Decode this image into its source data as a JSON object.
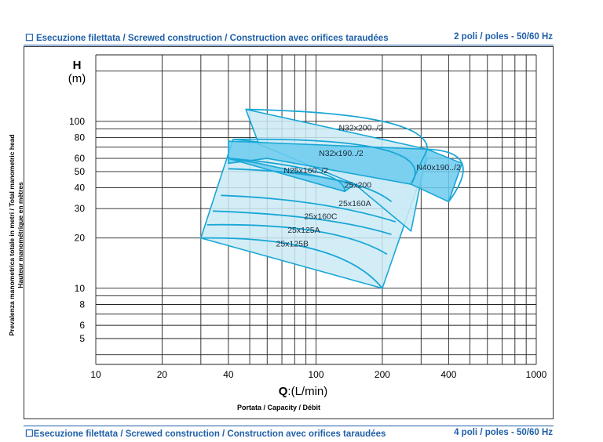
{
  "header_top": {
    "left": "Esecuzione filettata / Screwed construction / Construction avec orifices taraudées",
    "right": "2 poli / poles - 50/60 Hz",
    "checkbox_glyph": "☐"
  },
  "header_bottom": {
    "left": "Esecuzione filettata / Screwed construction / Construction avec orifices taraudées",
    "right": "4 poli / poles - 50/60 Hz",
    "checkbox_glyph": "☐"
  },
  "colors": {
    "accent": "#1f5fa8",
    "curve": "#19a7d6",
    "fill_light": "#cbeaf6",
    "fill_dark": "#6ccbee"
  },
  "chart_data": {
    "type": "line",
    "x_scale": "log",
    "y_scale": "log",
    "xlim": [
      10,
      1000
    ],
    "ylim": [
      3.5,
      250
    ],
    "x_ticks": [
      10,
      20,
      40,
      100,
      200,
      400,
      1000
    ],
    "x_tick_labels": [
      "10",
      "20",
      "40",
      "100",
      "200",
      "400",
      "1000"
    ],
    "y_ticks": [
      5,
      6,
      8,
      10,
      20,
      30,
      40,
      50,
      60,
      80,
      100
    ],
    "y_tick_labels": [
      "5",
      "6",
      "8",
      "10",
      "20",
      "30",
      "40",
      "50",
      "60",
      "80",
      "100"
    ],
    "y_unit_label": {
      "symbol": "H",
      "unit": "(m)"
    },
    "x_axis_label": {
      "symbol": "Q",
      "unit": ":(L/min)"
    },
    "x_axis_caption": "Portata / Capacity / Débit",
    "y_axis_caption": [
      "Prevalenza manometrica totale in metri / Total manometric head",
      "Hauteur manométrique en mètres"
    ],
    "grid": true,
    "regions": [
      {
        "shade": "light",
        "points": [
          [
            30,
            20
          ],
          [
            42,
            78
          ],
          [
            320,
            60
          ],
          [
            200,
            10
          ]
        ]
      },
      {
        "shade": "light",
        "points": [
          [
            48,
            118
          ],
          [
            320,
            68
          ],
          [
            270,
            22
          ],
          [
            150,
            42
          ],
          [
            55,
            73
          ]
        ]
      },
      {
        "shade": "dark",
        "points": [
          [
            40,
            76
          ],
          [
            320,
            68
          ],
          [
            270,
            42
          ],
          [
            60,
            60
          ],
          [
            40,
            56
          ]
        ]
      },
      {
        "shade": "dark",
        "points": [
          [
            40,
            60
          ],
          [
            135,
            38
          ],
          [
            150,
            42
          ],
          [
            55,
            56
          ]
        ]
      },
      {
        "shade": "dark",
        "points": [
          [
            320,
            68
          ],
          [
            460,
            56
          ],
          [
            400,
            33
          ],
          [
            270,
            42
          ]
        ]
      }
    ],
    "series": [
      {
        "label": "N32x200../2",
        "points": [
          [
            48,
            118
          ],
          [
            200,
            100
          ],
          [
            320,
            68
          ]
        ]
      },
      {
        "label": "N32x190../2",
        "points": [
          [
            42,
            78
          ],
          [
            200,
            68
          ],
          [
            270,
            42
          ]
        ]
      },
      {
        "label": "N25x160../2",
        "points": [
          [
            40,
            60
          ],
          [
            100,
            50
          ],
          [
            135,
            38
          ]
        ]
      },
      {
        "label": "25x200",
        "points": [
          [
            40,
            52
          ],
          [
            120,
            45
          ],
          [
            220,
            33
          ]
        ]
      },
      {
        "label": "25x160A",
        "points": [
          [
            37,
            36
          ],
          [
            100,
            32
          ],
          [
            230,
            25
          ]
        ]
      },
      {
        "label": "25x160C",
        "points": [
          [
            34,
            29
          ],
          [
            100,
            26
          ],
          [
            220,
            21
          ]
        ]
      },
      {
        "label": "25x125A",
        "points": [
          [
            32,
            24
          ],
          [
            100,
            22
          ],
          [
            210,
            16
          ]
        ]
      },
      {
        "label": "25x125B",
        "points": [
          [
            30,
            20
          ],
          [
            100,
            17
          ],
          [
            200,
            10
          ]
        ]
      },
      {
        "label": "N40x190../2",
        "points": [
          [
            320,
            68
          ],
          [
            460,
            56
          ],
          [
            400,
            33
          ]
        ]
      }
    ],
    "labels": [
      {
        "text": "N32x200../2",
        "at": [
          160,
          88
        ]
      },
      {
        "text": "N32x190../2",
        "at": [
          130,
          62
        ]
      },
      {
        "text": "N25x160../2",
        "at": [
          90,
          49
        ]
      },
      {
        "text": "25x200",
        "at": [
          155,
          40
        ]
      },
      {
        "text": "25x160A",
        "at": [
          150,
          31
        ]
      },
      {
        "text": "25x160C",
        "at": [
          105,
          26
        ]
      },
      {
        "text": "25x125A",
        "at": [
          88,
          21.5
        ]
      },
      {
        "text": "25x125B",
        "at": [
          78,
          17.8
        ]
      },
      {
        "text": "N40x190../2",
        "at": [
          360,
          51
        ]
      }
    ]
  }
}
